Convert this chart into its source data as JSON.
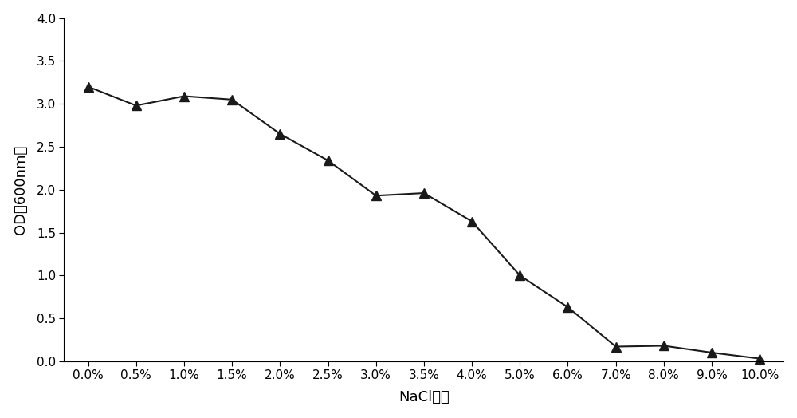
{
  "x_labels": [
    "0.0%",
    "0.5%",
    "1.0%",
    "1.5%",
    "2.0%",
    "2.5%",
    "3.0%",
    "3.5%",
    "4.0%",
    "5.0%",
    "6.0%",
    "7.0%",
    "8.0%",
    "9.0%",
    "10.0%"
  ],
  "y_values": [
    3.2,
    2.98,
    3.09,
    3.05,
    2.65,
    2.34,
    1.93,
    1.96,
    1.63,
    1.0,
    0.63,
    0.17,
    0.18,
    0.1,
    0.03
  ],
  "xlabel": "NaCl浓度",
  "ylabel": "OD（600nm）",
  "ylim": [
    0.0,
    4.0
  ],
  "yticks": [
    0.0,
    0.5,
    1.0,
    1.5,
    2.0,
    2.5,
    3.0,
    3.5,
    4.0
  ],
  "ytick_labels": [
    "0.0",
    "0.5",
    "1.0",
    "1.5",
    "2.0",
    "2.5",
    "3.0",
    "3.5",
    "4.0"
  ],
  "line_color": "#1a1a1a",
  "marker": "^",
  "marker_size": 8,
  "marker_facecolor": "#1a1a1a",
  "linewidth": 1.5,
  "background_color": "#ffffff",
  "axes_color": "#000000",
  "tick_fontsize": 11,
  "label_fontsize": 13
}
